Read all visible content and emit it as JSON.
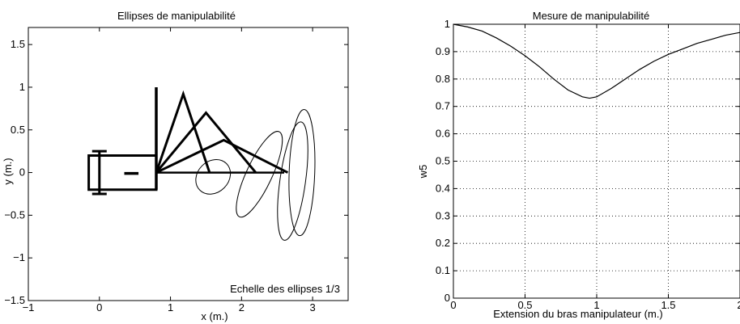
{
  "chart_data": [
    {
      "type": "line",
      "title": "Ellipses de manipulabilité",
      "xlabel": "x (m.)",
      "ylabel": "y (m.)",
      "xlim": [
        -1,
        3.5
      ],
      "ylim": [
        -1.5,
        1.7
      ],
      "xticks": [
        "−1",
        "0",
        "1",
        "2",
        "3"
      ],
      "xtick_values": [
        -1,
        0,
        1,
        2,
        3
      ],
      "yticks": [
        "−1.5",
        "−1",
        "−0.5",
        "0",
        "0.5",
        "1",
        "1.5"
      ],
      "ytick_values": [
        -1.5,
        -1,
        -0.5,
        0,
        0.5,
        1,
        1.5
      ],
      "grid": false,
      "annotation": "Echelle des ellipses 1/3",
      "base": {
        "body": [
          [
            -0.15,
            0.2
          ],
          [
            0.8,
            0.2
          ],
          [
            0.8,
            -0.2
          ],
          [
            -0.15,
            -0.2
          ]
        ],
        "wheel_x": 0.0,
        "wheel_y": [
          -0.25,
          0.25
        ],
        "mast_x": 0.8,
        "mast_y": [
          -0.2,
          1.0
        ],
        "small_arm": [
          [
            0.35,
            0.0
          ],
          [
            0.55,
            0.0
          ]
        ]
      },
      "arm_configurations": [
        {
          "elbow": [
            1.18,
            0.92
          ],
          "end": [
            1.55,
            0.0
          ]
        },
        {
          "elbow": [
            1.5,
            0.7
          ],
          "end": [
            2.2,
            0.0
          ]
        },
        {
          "elbow": [
            1.75,
            0.38
          ],
          "end": [
            2.65,
            0.0
          ]
        }
      ],
      "arm_base": [
        0.8,
        0.0
      ],
      "ground_line": [
        [
          0.8,
          0.0
        ],
        [
          2.6,
          0.0
        ]
      ],
      "ellipses": [
        {
          "cx": 1.6,
          "cy": -0.05,
          "rx": 0.22,
          "ry": 0.22,
          "angle": 45
        },
        {
          "cx": 2.25,
          "cy": -0.02,
          "rx": 0.18,
          "ry": 0.55,
          "angle": 25
        },
        {
          "cx": 2.72,
          "cy": -0.1,
          "rx": 0.18,
          "ry": 0.7,
          "angle": 8
        },
        {
          "cx": 2.85,
          "cy": 0.0,
          "rx": 0.18,
          "ry": 0.74,
          "angle": 2
        }
      ]
    },
    {
      "type": "line",
      "title": "Mesure de manipulabilité",
      "xlabel": "Extension du bras manipulateur (m.)",
      "ylabel": "w5",
      "xlim": [
        0,
        2
      ],
      "ylim": [
        0,
        1
      ],
      "xticks": [
        "0",
        "0.5",
        "1",
        "1.5",
        "2"
      ],
      "xtick_values": [
        0,
        0.5,
        1,
        1.5,
        2
      ],
      "yticks": [
        "0",
        "0.1",
        "0.2",
        "0.3",
        "0.4",
        "0.5",
        "0.6",
        "0.7",
        "0.8",
        "0.9",
        "1"
      ],
      "ytick_values": [
        0,
        0.1,
        0.2,
        0.3,
        0.4,
        0.5,
        0.6,
        0.7,
        0.8,
        0.9,
        1
      ],
      "grid": true,
      "series": [
        {
          "x": [
            0,
            0.1,
            0.2,
            0.3,
            0.4,
            0.5,
            0.6,
            0.7,
            0.8,
            0.9,
            0.95,
            1.0,
            1.1,
            1.2,
            1.3,
            1.4,
            1.5,
            1.6,
            1.7,
            1.8,
            1.9,
            2.0
          ],
          "y": [
            1.0,
            0.99,
            0.975,
            0.95,
            0.92,
            0.885,
            0.845,
            0.8,
            0.76,
            0.735,
            0.73,
            0.735,
            0.765,
            0.8,
            0.835,
            0.865,
            0.89,
            0.91,
            0.93,
            0.945,
            0.96,
            0.97
          ]
        }
      ]
    }
  ]
}
